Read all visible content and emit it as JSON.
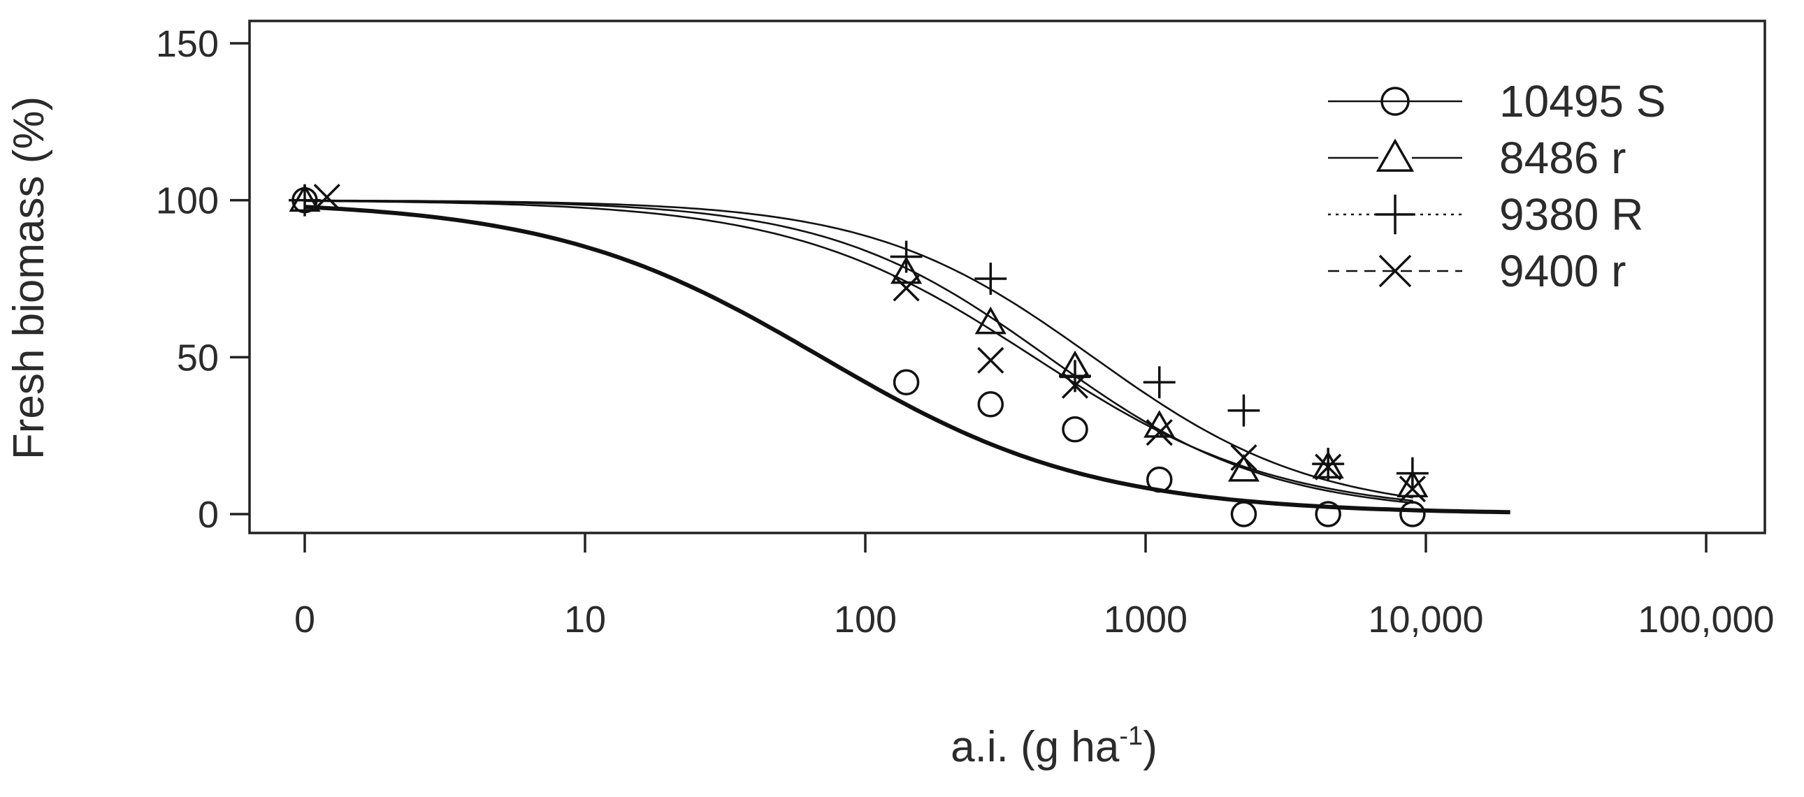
{
  "chart_data": {
    "type": "line",
    "xscale": "log",
    "xlabel_main": "a.i. (g ha",
    "xlabel_sup": "-1",
    "xlabel_close": ")",
    "ylabel": "Fresh biomass (%)",
    "ylim": [
      -6,
      155
    ],
    "yticks": [
      0,
      50,
      100,
      150
    ],
    "ytick_labels": [
      "0",
      "50",
      "100",
      "150"
    ],
    "xtick_labels": [
      "0",
      "10",
      "100",
      "1000",
      "10,000",
      "100,000"
    ],
    "xtick_exponents": [
      0,
      1,
      2,
      3,
      4,
      5
    ],
    "legend_position": "top-right",
    "series": [
      {
        "name": "10495 S",
        "marker": "circle",
        "line": "solid",
        "line_weight": "bold",
        "x": [
          1,
          140,
          280,
          560,
          1120,
          2240,
          4480,
          8960
        ],
        "y": [
          100,
          42,
          35,
          27,
          11,
          0,
          0,
          0
        ],
        "curve": {
          "top": 100,
          "ed50": 70,
          "slope": 0.9,
          "x_min": 1,
          "x_max": 20000
        }
      },
      {
        "name": "8486 r",
        "marker": "triangle",
        "line": "solid",
        "line_weight": "thin",
        "x": [
          1,
          140,
          280,
          560,
          1120,
          2240,
          4480,
          8960
        ],
        "y": [
          100,
          77,
          61,
          47,
          28,
          14,
          15,
          9
        ],
        "curve": {
          "top": 100,
          "ed50": 450,
          "slope": 1.1,
          "x_min": 1,
          "x_max": 9000
        }
      },
      {
        "name": "9380 R",
        "marker": "plus",
        "line": "dotted",
        "line_weight": "thin",
        "x": [
          1,
          140,
          280,
          560,
          1120,
          2240,
          4480,
          8960
        ],
        "y": [
          100,
          82,
          75,
          44,
          42,
          33,
          16,
          13
        ],
        "curve": {
          "top": 100,
          "ed50": 650,
          "slope": 1.1,
          "x_min": 1,
          "x_max": 9000
        }
      },
      {
        "name": "9400 r",
        "marker": "cross",
        "line": "dashed",
        "line_weight": "thin",
        "x": [
          1.2,
          140,
          280,
          560,
          1120,
          2240,
          4480,
          8960
        ],
        "y": [
          101,
          72,
          49,
          41,
          26,
          18,
          15,
          8
        ],
        "curve": {
          "top": 100,
          "ed50": 400,
          "slope": 1.0,
          "x_min": 1,
          "x_max": 9000
        }
      }
    ]
  }
}
